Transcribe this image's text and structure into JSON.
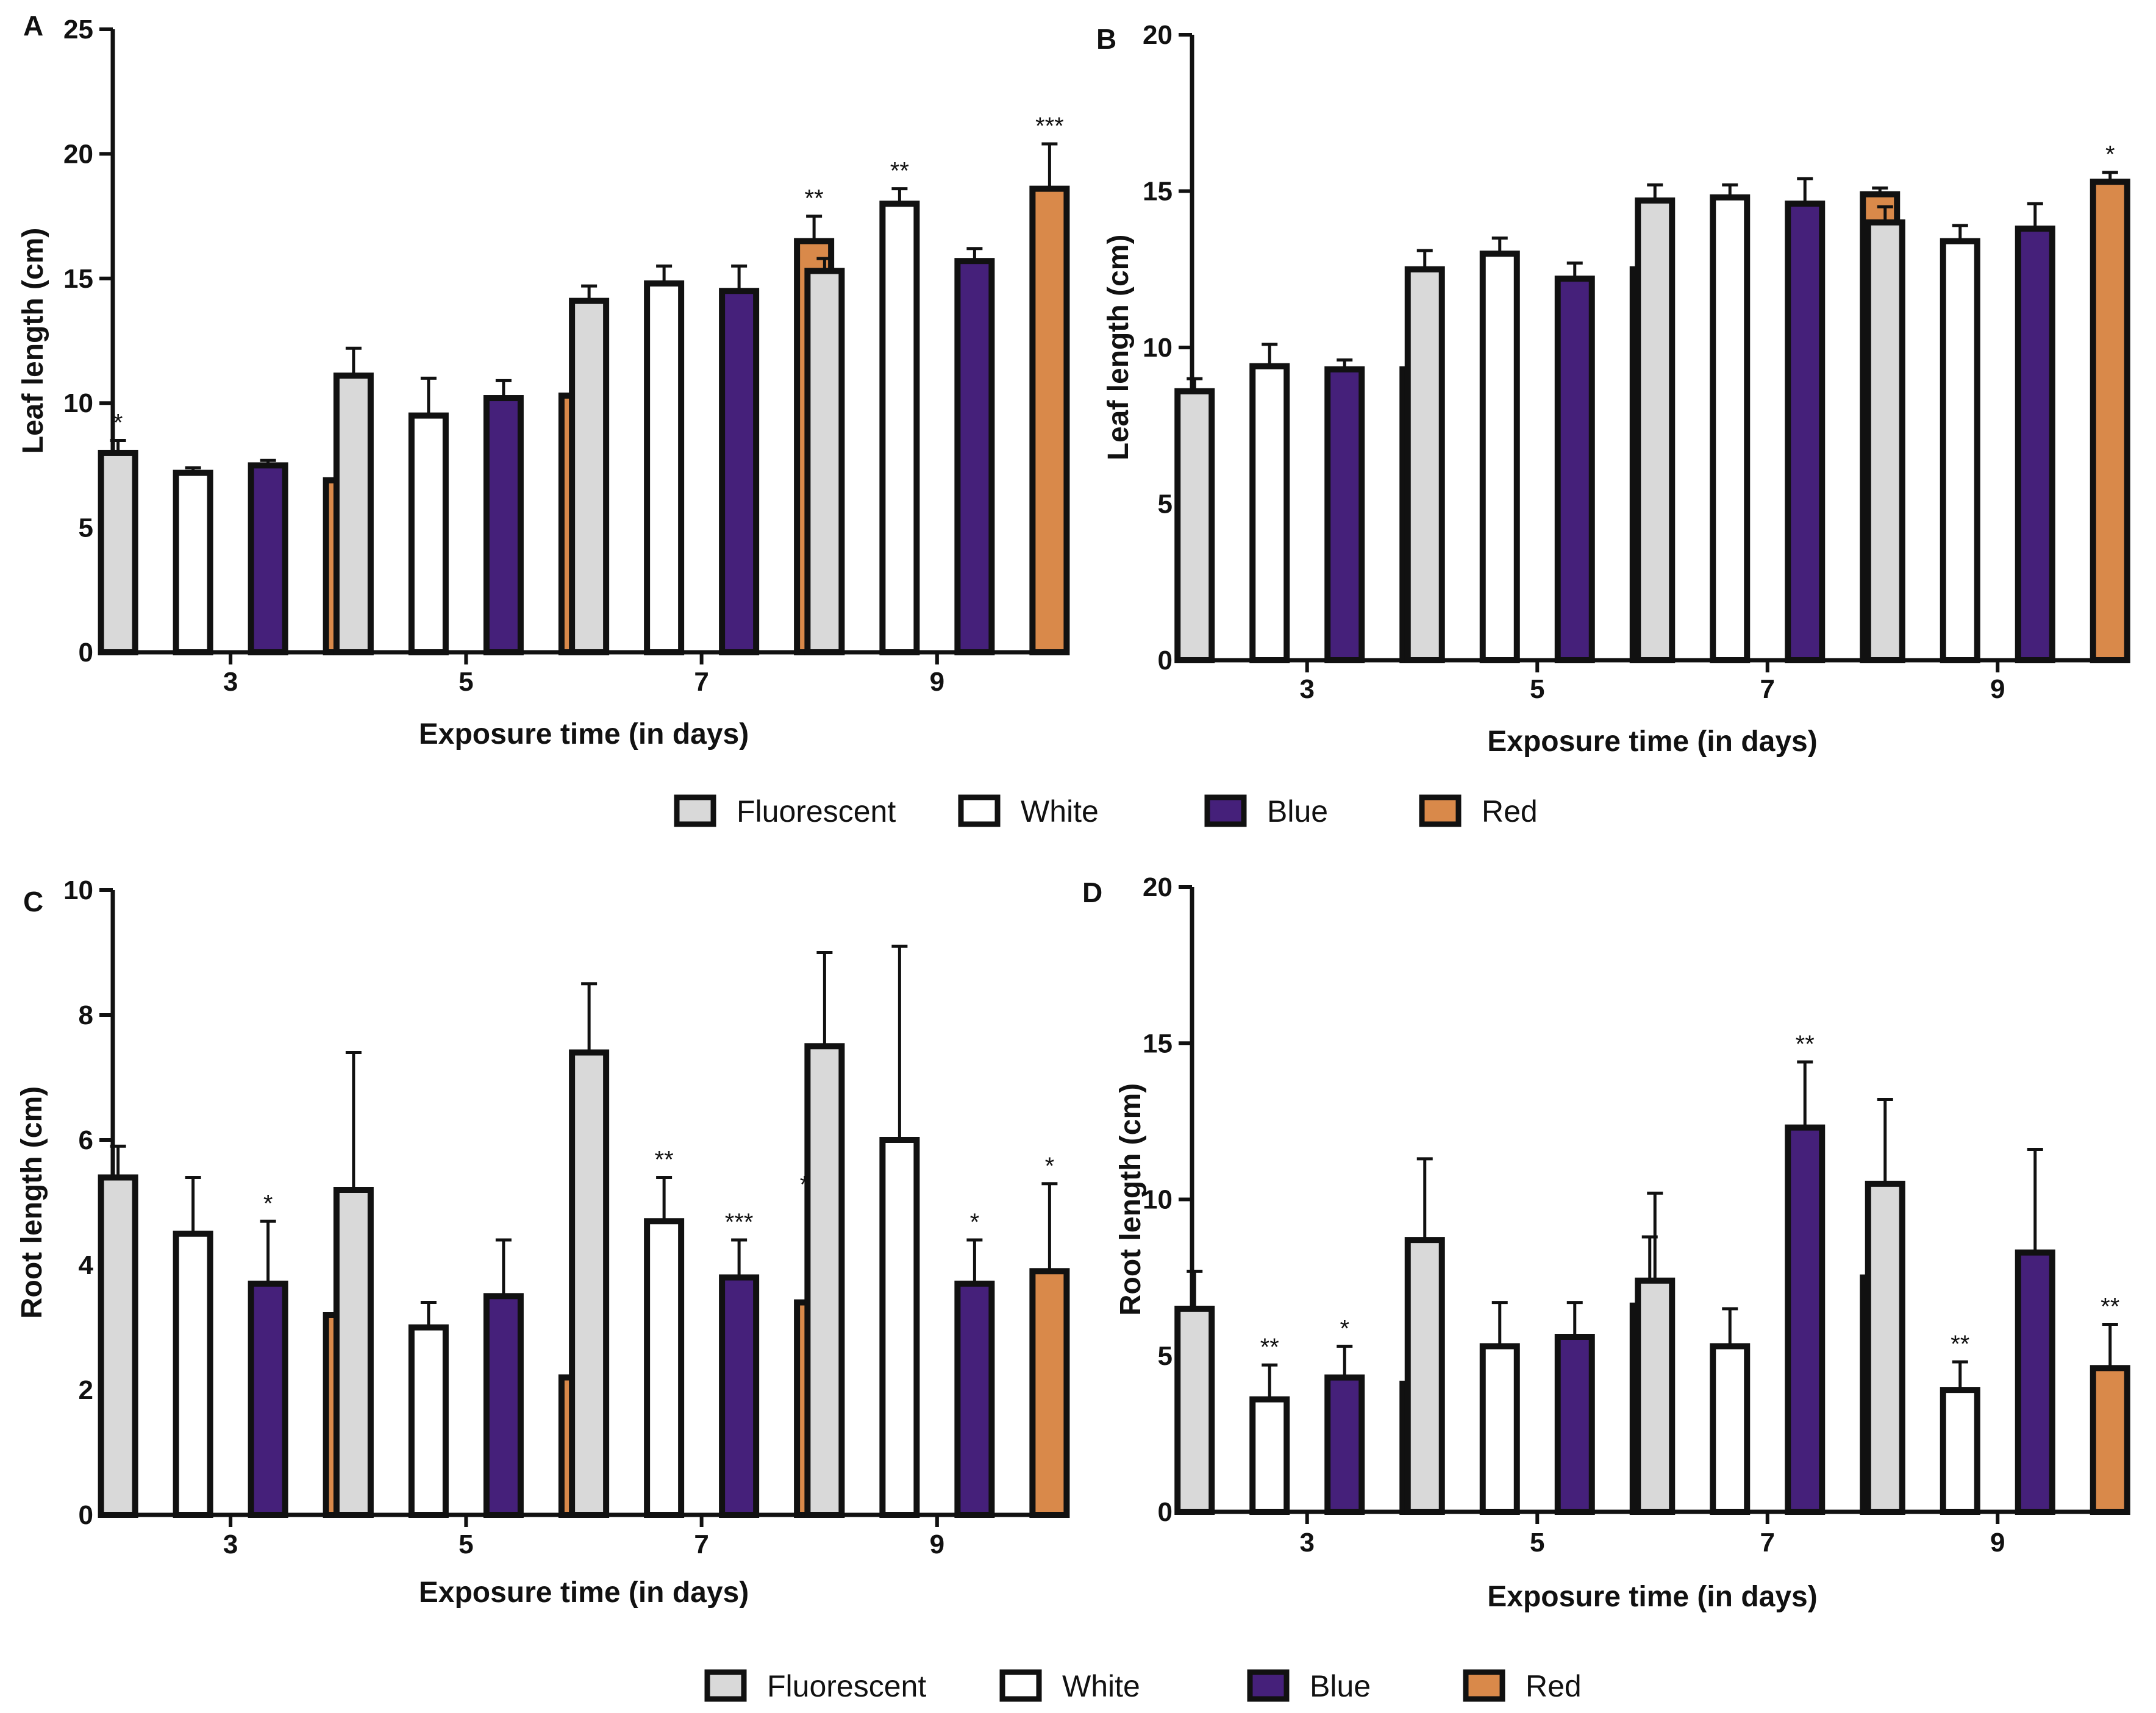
{
  "colors": {
    "Fluorescent": "#d9d9d9",
    "White": "#ffffff",
    "Blue": "#45207a",
    "Red": "#d9894a"
  },
  "legend_entries": [
    "Fluorescent",
    "White",
    "Blue",
    "Red"
  ],
  "chart_data": [
    {
      "panel": "A",
      "type": "bar",
      "ylabel": "Leaf length (cm)",
      "xlabel": "Exposure time (in days)",
      "categories": [
        "3",
        "5",
        "7",
        "9"
      ],
      "ylim": [
        0,
        25
      ],
      "yticks": [
        "0",
        "5",
        "10",
        "15",
        "20",
        "25"
      ],
      "series": [
        {
          "name": "Fluorescent",
          "values": [
            8.0,
            11.1,
            14.1,
            15.3
          ],
          "errors": [
            0.5,
            1.1,
            0.6,
            0.5
          ],
          "sig": [
            "*",
            "",
            "",
            ""
          ]
        },
        {
          "name": "White",
          "values": [
            7.2,
            9.5,
            14.8,
            18.0
          ],
          "errors": [
            0.2,
            1.5,
            0.7,
            0.6
          ],
          "sig": [
            "",
            "",
            "",
            "**"
          ]
        },
        {
          "name": "Blue",
          "values": [
            7.5,
            10.2,
            14.5,
            15.7
          ],
          "errors": [
            0.2,
            0.7,
            1.0,
            0.5
          ],
          "sig": [
            "",
            "",
            "",
            ""
          ]
        },
        {
          "name": "Red",
          "values": [
            6.9,
            10.3,
            16.5,
            18.6
          ],
          "errors": [
            0.5,
            1.2,
            1.0,
            1.8
          ],
          "sig": [
            "**",
            "",
            "**",
            "***"
          ]
        }
      ]
    },
    {
      "panel": "B",
      "type": "bar",
      "ylabel": "Leaf length (cm)",
      "xlabel": "Exposure time (in days)",
      "categories": [
        "3",
        "5",
        "7",
        "9"
      ],
      "ylim": [
        0,
        20
      ],
      "yticks": [
        "0",
        "5",
        "10",
        "15",
        "20"
      ],
      "series": [
        {
          "name": "Fluorescent",
          "values": [
            8.6,
            12.5,
            14.7,
            14.0
          ],
          "errors": [
            0.4,
            0.6,
            0.5,
            0.5
          ],
          "sig": [
            "",
            "",
            "",
            ""
          ]
        },
        {
          "name": "White",
          "values": [
            9.4,
            13.0,
            14.8,
            13.4
          ],
          "errors": [
            0.7,
            0.5,
            0.4,
            0.5
          ],
          "sig": [
            "",
            "",
            "",
            ""
          ]
        },
        {
          "name": "Blue",
          "values": [
            9.3,
            12.2,
            14.6,
            13.8
          ],
          "errors": [
            0.3,
            0.5,
            0.8,
            0.8
          ],
          "sig": [
            "",
            "",
            "",
            ""
          ]
        },
        {
          "name": "Red",
          "values": [
            9.3,
            12.5,
            14.9,
            15.3
          ],
          "errors": [
            0.6,
            0.6,
            0.2,
            0.3
          ],
          "sig": [
            "",
            "",
            "",
            "*"
          ]
        }
      ]
    },
    {
      "panel": "C",
      "type": "bar",
      "ylabel": "Root length (cm)",
      "xlabel": "Exposure time (in days)",
      "categories": [
        "3",
        "5",
        "7",
        "9"
      ],
      "ylim": [
        0,
        10
      ],
      "yticks": [
        "0",
        "2",
        "4",
        "6",
        "8",
        "10"
      ],
      "series": [
        {
          "name": "Fluorescent",
          "values": [
            5.4,
            5.2,
            7.4,
            7.5
          ],
          "errors": [
            0.5,
            2.2,
            1.1,
            1.5
          ],
          "sig": [
            "",
            "",
            "",
            ""
          ]
        },
        {
          "name": "White",
          "values": [
            4.5,
            3.0,
            4.7,
            6.0
          ],
          "errors": [
            0.9,
            0.4,
            0.7,
            3.1
          ],
          "sig": [
            "",
            "",
            "**",
            ""
          ]
        },
        {
          "name": "Blue",
          "values": [
            3.7,
            3.5,
            3.8,
            3.7
          ],
          "errors": [
            1.0,
            0.9,
            0.6,
            0.7
          ],
          "sig": [
            "*",
            "",
            "***",
            "*"
          ]
        },
        {
          "name": "Red",
          "values": [
            3.2,
            2.2,
            3.4,
            3.9
          ],
          "errors": [
            0.2,
            0.6,
            1.6,
            1.4
          ],
          "sig": [
            "**",
            "**",
            "***",
            "*"
          ]
        }
      ]
    },
    {
      "panel": "D",
      "type": "bar",
      "ylabel": "Root length (cm)",
      "xlabel": "Exposure time (in days)",
      "categories": [
        "3",
        "5",
        "7",
        "9"
      ],
      "ylim": [
        0,
        20
      ],
      "yticks": [
        "0",
        "5",
        "10",
        "15",
        "20"
      ],
      "series": [
        {
          "name": "Fluorescent",
          "values": [
            6.5,
            8.7,
            7.4,
            10.5
          ],
          "errors": [
            1.2,
            2.6,
            2.8,
            2.7
          ],
          "sig": [
            "",
            "",
            "",
            ""
          ]
        },
        {
          "name": "White",
          "values": [
            3.6,
            5.3,
            5.3,
            3.9
          ],
          "errors": [
            1.1,
            1.4,
            1.2,
            0.9
          ],
          "sig": [
            "**",
            "",
            "",
            "**"
          ]
        },
        {
          "name": "Blue",
          "values": [
            4.3,
            5.6,
            12.3,
            8.3
          ],
          "errors": [
            1.0,
            1.1,
            2.1,
            3.3
          ],
          "sig": [
            "*",
            "",
            "**",
            ""
          ]
        },
        {
          "name": "Red",
          "values": [
            4.1,
            6.6,
            7.5,
            4.6
          ],
          "errors": [
            0.8,
            2.2,
            1.3,
            1.4
          ],
          "sig": [
            "*",
            "",
            "",
            "**"
          ]
        }
      ]
    }
  ]
}
